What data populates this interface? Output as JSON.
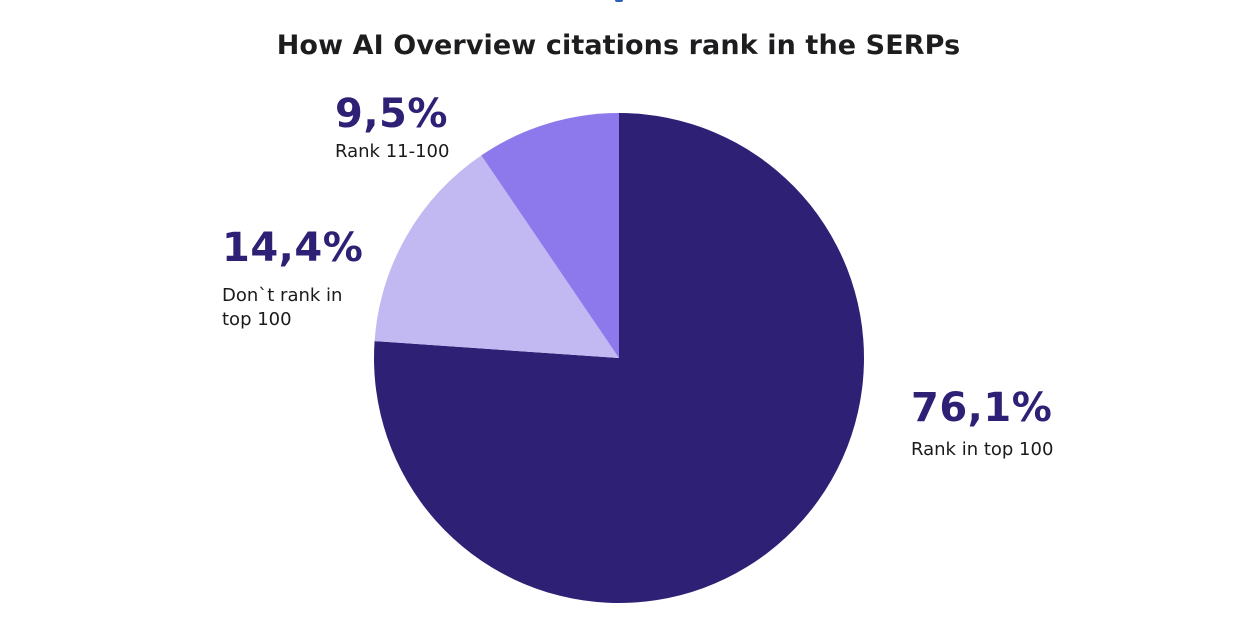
{
  "chart_data": {
    "type": "pie",
    "title": "How AI Overview citations rank in the SERPs",
    "start_angle": "12 o'clock, clockwise",
    "slices": [
      {
        "label": "Rank in top 100",
        "value": 76.1,
        "display": "76,1%",
        "color": "#2e2075",
        "label_color": "#1b1b1b",
        "value_color": "#2e2075"
      },
      {
        "label": "Don`t rank in top 100",
        "value": 14.4,
        "display": "14,4%",
        "color": "#c2b8f2",
        "label_color": "#1b1b1b",
        "value_color": "#2e2075"
      },
      {
        "label": "Rank 11-100",
        "value": 9.5,
        "display": "9,5%",
        "color": "#8e79ec",
        "label_color": "#1b1b1b",
        "value_color": "#2e2075"
      }
    ]
  }
}
